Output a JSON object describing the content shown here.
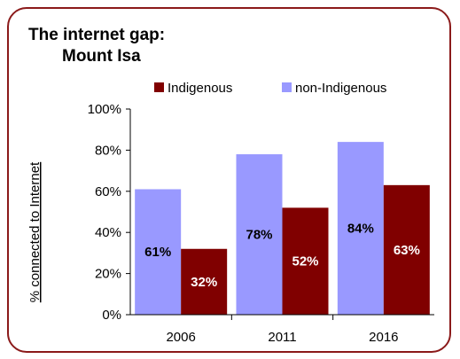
{
  "chart_data": {
    "type": "bar",
    "title": "The internet gap:",
    "subtitle": "Mount Isa",
    "ylabel": "% connected to Internet",
    "xlabel": "",
    "categories": [
      "2006",
      "2011",
      "2016"
    ],
    "series": [
      {
        "name": "non-Indigenous",
        "values": [
          61,
          78,
          84
        ],
        "labels": [
          "61%",
          "78%",
          "84%"
        ],
        "color": "#9999ff",
        "label_color": "#000000"
      },
      {
        "name": "Indigenous",
        "values": [
          32,
          52,
          63
        ],
        "labels": [
          "32%",
          "52%",
          "63%"
        ],
        "color": "#800000",
        "label_color": "#ffffff"
      }
    ],
    "legend_order": [
      "Indigenous",
      "non-Indigenous"
    ],
    "ylim": [
      0,
      100
    ],
    "yticks": [
      "0%",
      "20%",
      "40%",
      "60%",
      "80%",
      "100%"
    ],
    "grid": false,
    "legend_position": "top",
    "border_color": "#8b1a1a"
  }
}
